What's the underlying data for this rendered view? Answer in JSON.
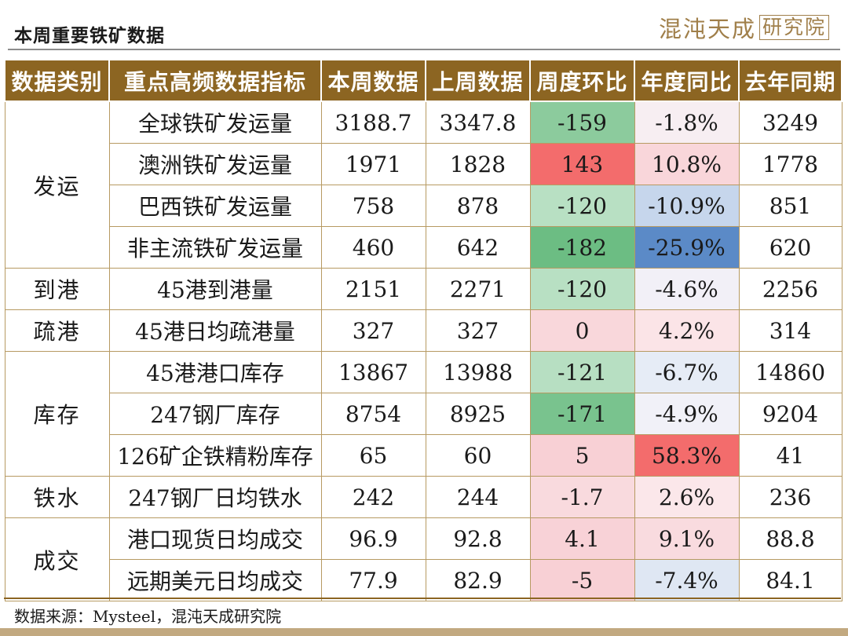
{
  "page_title": "本周重要铁矿数据",
  "brand": {
    "text": "混沌天成",
    "box_text": "研究院"
  },
  "table": {
    "headers": [
      "数据类别",
      "重点高频数据指标",
      "本周数据",
      "上周数据",
      "周度环比",
      "年度同比",
      "去年同期"
    ],
    "groups": [
      {
        "category": "发运",
        "rows": [
          {
            "indicator": "全球铁矿发运量",
            "this_week": "3188.7",
            "last_week": "3347.8",
            "wow": "-159",
            "yoy": "-1.8%",
            "last_year": "3249",
            "wow_color": "#8ccb9d",
            "yoy_color": "#f7eef2"
          },
          {
            "indicator": "澳洲铁矿发运量",
            "this_week": "1971",
            "last_week": "1828",
            "wow": "143",
            "yoy": "10.8%",
            "last_year": "1778",
            "wow_color": "#f36c6c",
            "yoy_color": "#f9d6da"
          },
          {
            "indicator": "巴西铁矿发运量",
            "this_week": "758",
            "last_week": "878",
            "wow": "-120",
            "yoy": "-10.9%",
            "last_year": "851",
            "wow_color": "#b8e0c3",
            "yoy_color": "#c6d6ec"
          },
          {
            "indicator": "非主流铁矿发运量",
            "this_week": "460",
            "last_week": "642",
            "wow": "-182",
            "yoy": "-25.9%",
            "last_year": "620",
            "wow_color": "#6cbd83",
            "yoy_color": "#5b8ac7"
          }
        ]
      },
      {
        "category": "到港",
        "rows": [
          {
            "indicator": "45港到港量",
            "this_week": "2151",
            "last_week": "2271",
            "wow": "-120",
            "yoy": "-4.6%",
            "last_year": "2256",
            "wow_color": "#b8e0c3",
            "yoy_color": "#f2f0f7"
          }
        ]
      },
      {
        "category": "疏港",
        "rows": [
          {
            "indicator": "45港日均疏港量",
            "this_week": "327",
            "last_week": "327",
            "wow": "0",
            "yoy": "4.2%",
            "last_year": "314",
            "wow_color": "#f9d7db",
            "yoy_color": "#fbe4e7"
          }
        ]
      },
      {
        "category": "库存",
        "rows": [
          {
            "indicator": "45港港口库存",
            "this_week": "13867",
            "last_week": "13988",
            "wow": "-121",
            "yoy": "-6.7%",
            "last_year": "14860",
            "wow_color": "#b7dfc2",
            "yoy_color": "#e6ecf6"
          },
          {
            "indicator": "247钢厂库存",
            "this_week": "8754",
            "last_week": "8925",
            "wow": "-171",
            "yoy": "-4.9%",
            "last_year": "9204",
            "wow_color": "#79c38e",
            "yoy_color": "#f1f1f8"
          },
          {
            "indicator": "126矿企铁精粉库存",
            "this_week": "65",
            "last_week": "60",
            "wow": "5",
            "yoy": "58.3%",
            "last_year": "41",
            "wow_color": "#f8d0d5",
            "yoy_color": "#f36c6c"
          }
        ]
      },
      {
        "category": "铁水",
        "rows": [
          {
            "indicator": "247钢厂日均铁水",
            "this_week": "242",
            "last_week": "244",
            "wow": "-1.7",
            "yoy": "2.6%",
            "last_year": "236",
            "wow_color": "#f9dade",
            "yoy_color": "#fbe7ea"
          }
        ]
      },
      {
        "category": "成交",
        "rows": [
          {
            "indicator": "港口现货日均成交",
            "this_week": "96.9",
            "last_week": "92.8",
            "wow": "4.1",
            "yoy": "9.1%",
            "last_year": "88.8",
            "wow_color": "#f8d2d7",
            "yoy_color": "#f9dbdf"
          },
          {
            "indicator": "远期美元日均成交",
            "this_week": "77.9",
            "last_week": "82.9",
            "wow": "-5",
            "yoy": "-7.4%",
            "last_year": "84.1",
            "wow_color": "#f8d0d5",
            "yoy_color": "#dfe7f3"
          }
        ]
      }
    ]
  },
  "source_note": "数据来源：Mysteel，混沌天成研究院"
}
